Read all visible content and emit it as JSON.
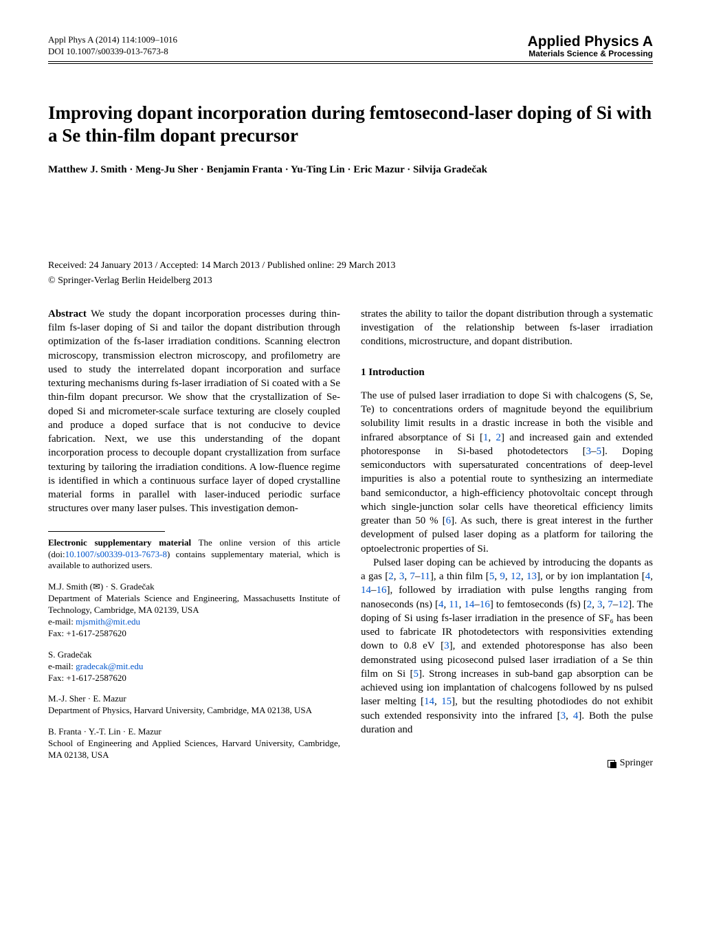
{
  "header": {
    "citation": "Appl Phys A (2014) 114:1009–1016",
    "doi": "DOI 10.1007/s00339-013-7673-8",
    "journal_name": "Applied Physics A",
    "journal_sub": "Materials Science & Processing"
  },
  "title": "Improving dopant incorporation during femtosecond-laser doping of Si with a Se thin-film dopant precursor",
  "authors": "Matthew J. Smith · Meng-Ju Sher · Benjamin Franta · Yu-Ting Lin · Eric Mazur · Silvija Gradečak",
  "dates": "Received: 24 January 2013 / Accepted: 14 March 2013 / Published online: 29 March 2013",
  "copyright": "© Springer-Verlag Berlin Heidelberg 2013",
  "abstract": {
    "label": "Abstract",
    "text_col1": "We study the dopant incorporation processes during thin-film fs-laser doping of Si and tailor the dopant distribution through optimization of the fs-laser irradiation conditions. Scanning electron microscopy, transmission electron microscopy, and profilometry are used to study the interrelated dopant incorporation and surface texturing mechanisms during fs-laser irradiation of Si coated with a Se thin-film dopant precursor. We show that the crystallization of Se-doped Si and micrometer-scale surface texturing are closely coupled and produce a doped surface that is not conducive to device fabrication. Next, we use this understanding of the dopant incorporation process to decouple dopant crystallization from surface texturing by tailoring the irradiation conditions. A low-fluence regime is identified in which a continuous surface layer of doped crystalline material forms in parallel with laser-induced periodic surface structures over many laser pulses. This investigation demon-",
    "text_col2": "strates the ability to tailor the dopant distribution through a systematic investigation of the relationship between fs-laser irradiation conditions, microstructure, and dopant distribution."
  },
  "section1": {
    "heading": "1 Introduction",
    "para1_a": "The use of pulsed laser irradiation to dope Si with chalcogens (S, Se, Te) to concentrations orders of magnitude beyond the equilibrium solubility limit results in a drastic increase in both the visible and infrared absorptance of Si [",
    "r1": "1",
    "c1": ", ",
    "r2": "2",
    "para1_b": "] and increased gain and extended photoresponse in Si-based photodetectors [",
    "r3": "3",
    "d1": "–",
    "r5": "5",
    "para1_c": "]. Doping semiconductors with supersaturated concentrations of deep-level impurities is also a potential route to synthesizing an intermediate band semiconductor, a high-efficiency photovoltaic concept through which single-junction solar cells have theoretical efficiency limits greater than 50 % [",
    "r6": "6",
    "para1_d": "]. As such, there is great interest in the further development of pulsed laser doping as a platform for tailoring the optoelectronic properties of Si.",
    "para2_a": "Pulsed laser doping can be achieved by introducing the dopants as a gas [",
    "p2r1": "2",
    "p2c1": ", ",
    "p2r2": "3",
    "p2c2": ", ",
    "p2r3": "7",
    "p2d1": "–",
    "p2r4": "11",
    "para2_b": "], a thin film [",
    "p2r5": "5",
    "p2c3": ", ",
    "p2r6": "9",
    "p2c4": ", ",
    "p2r7": "12",
    "p2c5": ", ",
    "p2r8": "13",
    "para2_c": "], or by ion implantation [",
    "p2r9": "4",
    "p2c6": ", ",
    "p2r10": "14",
    "p2d2": "–",
    "p2r11": "16",
    "para2_d": "], followed by irradiation with pulse lengths ranging from nanoseconds (ns) [",
    "p2r12": "4",
    "p2c7": ", ",
    "p2r13": "11",
    "p2c8": ", ",
    "p2r14": "14",
    "p2d3": "–",
    "p2r15": "16",
    "para2_e": "] to femtoseconds (fs) [",
    "p2r16": "2",
    "p2c9": ", ",
    "p2r17": "3",
    "p2c10": ", ",
    "p2r18": "7",
    "p2d4": "–",
    "p2r19": "12",
    "para2_f": "]. The doping of Si using fs-laser irradiation in the presence of SF₆ has been used to fabricate IR photodetectors with responsivities extending down to 0.8 eV [",
    "p2r20": "3",
    "para2_g": "], and extended photoresponse has also been demonstrated using picosecond pulsed laser irradiation of a Se thin film on Si [",
    "p2r21": "5",
    "para2_h": "]. Strong increases in sub-band gap absorption can be achieved using ion implantation of chalcogens followed by ns pulsed laser melting [",
    "p2r22": "14",
    "p2c11": ", ",
    "p2r23": "15",
    "para2_i": "], but the resulting photodiodes do not exhibit such extended responsivity into the infrared [",
    "p2r24": "3",
    "p2c12": ", ",
    "p2r25": "4",
    "para2_j": "]. Both the pulse duration and"
  },
  "suppl": {
    "label": "Electronic supplementary material",
    "text_a": " The online version of this article (doi:",
    "doi_link": "10.1007/s00339-013-7673-8",
    "text_b": ") contains supplementary material, which is available to authorized users."
  },
  "affil1": {
    "line1": "M.J. Smith (✉) · S. Gradečak",
    "line2": "Department of Materials Science and Engineering, Massachusetts Institute of Technology, Cambridge, MA 02139, USA",
    "line3a": "e-mail: ",
    "email": "mjsmith@mit.edu",
    "line4": "Fax: +1-617-2587620"
  },
  "affil2": {
    "line1": "S. Gradečak",
    "line2a": "e-mail: ",
    "email": "gradecak@mit.edu",
    "line3": "Fax: +1-617-2587620"
  },
  "affil3": {
    "line1": "M.-J. Sher · E. Mazur",
    "line2": "Department of Physics, Harvard University, Cambridge, MA 02138, USA"
  },
  "affil4": {
    "line1": "B. Franta · Y.-T. Lin · E. Mazur",
    "line2": "School of Engineering and Applied Sciences, Harvard University, Cambridge, MA 02138, USA"
  },
  "footer": {
    "publisher": " Springer"
  },
  "colors": {
    "link": "#0055cc",
    "text": "#000000",
    "background": "#ffffff"
  },
  "fontsizes": {
    "body": 15,
    "title": 27,
    "journal": 21,
    "small": 13
  }
}
